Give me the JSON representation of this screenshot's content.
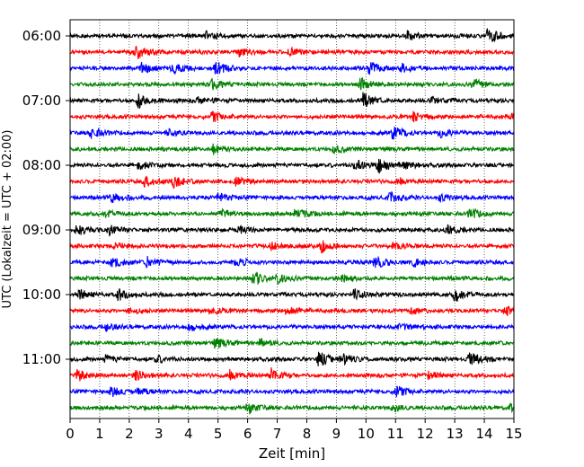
{
  "chart_data": {
    "type": "line",
    "title": "",
    "xlabel": "Zeit  [min]",
    "ylabel": "UTC (Lokalzeit = UTC + 02:00)",
    "xlim": [
      0,
      15
    ],
    "xticks": [
      "0",
      "1",
      "2",
      "3",
      "4",
      "5",
      "6",
      "7",
      "8",
      "9",
      "10",
      "11",
      "12",
      "13",
      "14",
      "15"
    ],
    "yticks": [
      "06:00",
      "07:00",
      "08:00",
      "09:00",
      "10:00",
      "11:00"
    ],
    "start_time": "06:00",
    "trace_interval_minutes": 15,
    "grid": "vertical dotted lines at each minute",
    "trace_colors": [
      "#000000",
      "#ff0000",
      "#0000ff",
      "#008000"
    ],
    "traces": [
      {
        "start": "06:00",
        "color": "#000000",
        "bursts": [
          [
            4.6,
            0.4
          ],
          [
            11.4,
            0.5
          ],
          [
            14.1,
            0.9
          ]
        ]
      },
      {
        "start": "06:15",
        "color": "#ff0000",
        "bursts": [
          [
            2.2,
            0.8
          ],
          [
            5.7,
            0.5
          ],
          [
            7.4,
            0.4
          ]
        ]
      },
      {
        "start": "06:30",
        "color": "#0000ff",
        "bursts": [
          [
            2.4,
            0.6
          ],
          [
            3.4,
            0.8
          ],
          [
            4.9,
            0.9
          ],
          [
            10.1,
            0.8
          ],
          [
            11.2,
            0.5
          ]
        ]
      },
      {
        "start": "06:45",
        "color": "#008000",
        "bursts": [
          [
            4.8,
            0.6
          ],
          [
            9.8,
            0.8
          ],
          [
            13.6,
            0.6
          ]
        ]
      },
      {
        "start": "07:00",
        "color": "#000000",
        "bursts": [
          [
            2.3,
            1.0
          ],
          [
            4.3,
            0.4
          ],
          [
            9.9,
            0.9
          ],
          [
            12.2,
            0.4
          ]
        ]
      },
      {
        "start": "07:15",
        "color": "#ff0000",
        "bursts": [
          [
            4.8,
            0.7
          ],
          [
            11.6,
            0.5
          ],
          [
            14.9,
            0.4
          ]
        ]
      },
      {
        "start": "07:30",
        "color": "#0000ff",
        "bursts": [
          [
            0.7,
            0.6
          ],
          [
            3.3,
            0.4
          ],
          [
            10.9,
            0.8
          ],
          [
            12.5,
            0.5
          ]
        ]
      },
      {
        "start": "07:45",
        "color": "#008000",
        "bursts": [
          [
            4.8,
            0.6
          ],
          [
            8.9,
            0.4
          ]
        ]
      },
      {
        "start": "08:00",
        "color": "#000000",
        "bursts": [
          [
            2.3,
            0.5
          ],
          [
            9.6,
            0.7
          ],
          [
            10.4,
            0.9
          ],
          [
            11.3,
            0.4
          ]
        ]
      },
      {
        "start": "08:15",
        "color": "#ff0000",
        "bursts": [
          [
            2.5,
            0.6
          ],
          [
            3.5,
            0.7
          ],
          [
            5.6,
            0.8
          ],
          [
            11.1,
            0.4
          ]
        ]
      },
      {
        "start": "08:30",
        "color": "#0000ff",
        "bursts": [
          [
            1.4,
            0.6
          ],
          [
            5.0,
            0.5
          ],
          [
            10.8,
            0.6
          ],
          [
            12.5,
            0.4
          ]
        ]
      },
      {
        "start": "08:45",
        "color": "#008000",
        "bursts": [
          [
            1.2,
            0.4
          ],
          [
            5.0,
            0.6
          ],
          [
            7.6,
            0.7
          ],
          [
            13.5,
            0.6
          ]
        ]
      },
      {
        "start": "09:00",
        "color": "#000000",
        "bursts": [
          [
            0.2,
            0.7
          ],
          [
            1.3,
            0.6
          ],
          [
            5.7,
            0.4
          ],
          [
            12.7,
            0.6
          ]
        ]
      },
      {
        "start": "09:15",
        "color": "#ff0000",
        "bursts": [
          [
            1.5,
            0.4
          ],
          [
            6.8,
            0.4
          ],
          [
            8.5,
            0.7
          ],
          [
            10.9,
            0.4
          ]
        ]
      },
      {
        "start": "09:30",
        "color": "#0000ff",
        "bursts": [
          [
            1.4,
            0.7
          ],
          [
            2.6,
            0.6
          ],
          [
            5.6,
            0.5
          ],
          [
            10.3,
            0.8
          ],
          [
            11.6,
            0.5
          ]
        ]
      },
      {
        "start": "09:45",
        "color": "#008000",
        "bursts": [
          [
            6.2,
            0.9
          ],
          [
            7.0,
            0.5
          ],
          [
            9.2,
            0.4
          ]
        ]
      },
      {
        "start": "10:00",
        "color": "#000000",
        "bursts": [
          [
            0.3,
            0.6
          ],
          [
            1.6,
            0.7
          ],
          [
            9.6,
            0.6
          ],
          [
            13.0,
            0.8
          ]
        ]
      },
      {
        "start": "10:15",
        "color": "#ff0000",
        "bursts": [
          [
            2.0,
            0.4
          ],
          [
            4.7,
            0.4
          ],
          [
            7.3,
            0.5
          ],
          [
            11.5,
            0.5
          ],
          [
            14.7,
            0.5
          ]
        ]
      },
      {
        "start": "10:30",
        "color": "#0000ff",
        "bursts": [
          [
            1.2,
            0.4
          ],
          [
            4.0,
            0.5
          ],
          [
            11.1,
            0.4
          ]
        ]
      },
      {
        "start": "10:45",
        "color": "#008000",
        "bursts": [
          [
            4.9,
            0.6
          ],
          [
            6.4,
            0.5
          ]
        ]
      },
      {
        "start": "11:00",
        "color": "#000000",
        "bursts": [
          [
            1.2,
            0.4
          ],
          [
            2.9,
            0.4
          ],
          [
            8.4,
            1.0
          ],
          [
            9.2,
            0.8
          ],
          [
            13.5,
            0.9
          ]
        ]
      },
      {
        "start": "11:15",
        "color": "#ff0000",
        "bursts": [
          [
            0.2,
            0.8
          ],
          [
            2.2,
            0.6
          ],
          [
            5.4,
            0.6
          ],
          [
            6.8,
            0.8
          ],
          [
            12.1,
            0.5
          ]
        ]
      },
      {
        "start": "11:30",
        "color": "#0000ff",
        "bursts": [
          [
            1.4,
            0.6
          ],
          [
            2.3,
            0.4
          ],
          [
            11.0,
            0.8
          ]
        ]
      },
      {
        "start": "11:45",
        "color": "#008000",
        "bursts": [
          [
            6.0,
            0.6
          ],
          [
            10.9,
            0.4
          ],
          [
            14.9,
            0.5
          ]
        ]
      }
    ]
  }
}
